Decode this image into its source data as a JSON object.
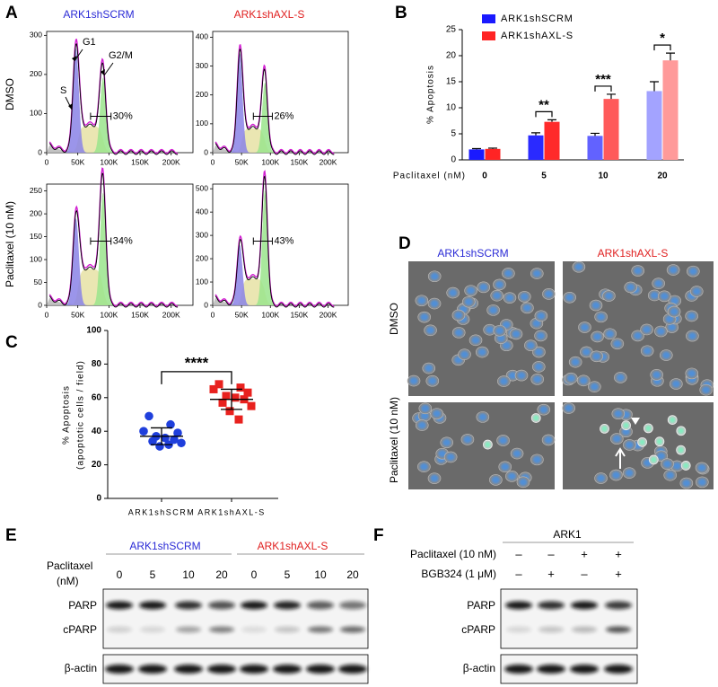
{
  "panels": {
    "A": {
      "letter": "A",
      "columns": [
        "ARK1shSCRM",
        "ARK1shAXL-S"
      ],
      "rows": [
        "DMSO",
        "Paclitaxel (10 nM)"
      ],
      "phases": [
        "G1",
        "S",
        "G2/M"
      ],
      "xlim": [
        0,
        235000
      ],
      "xticks": [
        0,
        {
          "value": 50000,
          "label": "50K"
        },
        {
          "value": 100000,
          "label": "100K"
        },
        {
          "value": 150000,
          "label": "150K"
        },
        {
          "value": 200000,
          "label": "200K"
        }
      ],
      "plots": [
        {
          "g2m": "30%",
          "ylim": [
            0,
            310
          ],
          "yticks": [
            0,
            100,
            200,
            300
          ]
        },
        {
          "g2m": "26%",
          "ylim": [
            0,
            420
          ],
          "yticks": [
            0,
            100,
            200,
            300,
            400
          ]
        },
        {
          "g2m": "34%",
          "ylim": [
            0,
            265
          ],
          "yticks": [
            0,
            50,
            100,
            150,
            200,
            250
          ]
        },
        {
          "g2m": "43%",
          "ylim": [
            0,
            520
          ],
          "yticks": [
            0,
            100,
            200,
            300,
            400,
            500
          ]
        }
      ]
    },
    "D": {
      "letter": "D",
      "columns": [
        "ARK1shSCRM",
        "ARK1shAXL-S"
      ],
      "rows": [
        "DMSO",
        "Paclitaxel (10 nM)"
      ]
    },
    "E": {
      "letter": "E",
      "groups": [
        "ARK1shSCRM",
        "ARK1shAXL-S"
      ],
      "treatment": "Paclitaxel",
      "unit": "(nM)",
      "lanes": [
        "0",
        "5",
        "10",
        "20",
        "0",
        "5",
        "10",
        "20"
      ],
      "bands": [
        "PARP",
        "cPARP"
      ],
      "loading": "β-actin"
    },
    "F": {
      "letter": "F",
      "cell_line": "ARK1",
      "conditions": [
        {
          "name": "Paclitaxel (10 nM)",
          "lanes": [
            "–",
            "–",
            "+",
            "+"
          ]
        },
        {
          "name": "BGB324 (1 μM)",
          "lanes": [
            "–",
            "+",
            "–",
            "+"
          ]
        }
      ],
      "bands": [
        "PARP",
        "cPARP"
      ],
      "loading": "β-actin"
    }
  },
  "chart_data": [
    {
      "type": "bar",
      "letter": "B",
      "ylabel": "% Apoptosis",
      "xlabel": "Paclitaxel (nM)",
      "categories": [
        "0",
        "5",
        "10",
        "20"
      ],
      "series": [
        {
          "name": "ARK1shSCRM",
          "color": "#1a1aff",
          "colors": [
            "#1a1aff",
            "#2a2aff",
            "#6262ff",
            "#a3a3ff"
          ],
          "values": [
            2.0,
            4.7,
            4.6,
            13.2
          ],
          "errors": [
            0.15,
            0.5,
            0.5,
            1.8
          ]
        },
        {
          "name": "ARK1shAXL-S",
          "color": "#ff2424",
          "colors": [
            "#ff2424",
            "#ff2a2a",
            "#ff5a5a",
            "#ff9a9a"
          ],
          "values": [
            2.1,
            7.3,
            11.7,
            19.1
          ],
          "errors": [
            0.15,
            0.4,
            0.9,
            1.4
          ]
        }
      ],
      "annotations": [
        {
          "text": "**",
          "category": 1
        },
        {
          "text": "***",
          "category": 2
        },
        {
          "text": "*",
          "category": 3
        }
      ],
      "ylim": [
        0,
        25
      ],
      "yticks": [
        0,
        5,
        10,
        15,
        20,
        25
      ],
      "legend": "upper left"
    },
    {
      "type": "dot",
      "letter": "C",
      "ylabel": [
        "% Apoptosis",
        "(apoptotic cells / field)"
      ],
      "categories": [
        "ARK1shSCRM",
        "ARK1shAXL-S"
      ],
      "groups": [
        {
          "color": "#1f3fdc",
          "marker": "circle",
          "values": [
            49,
            44,
            40,
            39,
            37,
            36,
            35,
            34,
            33,
            31,
            32
          ],
          "mean": 37,
          "sd": 5
        },
        {
          "color": "#e8211e",
          "marker": "square",
          "values": [
            68,
            66,
            65,
            63,
            61,
            60,
            59,
            57,
            55,
            52,
            47
          ],
          "mean": 59,
          "sd": 6
        }
      ],
      "annotation": "****",
      "ylim": [
        0,
        100
      ],
      "yticks": [
        0,
        20,
        40,
        60,
        80,
        100
      ]
    }
  ]
}
